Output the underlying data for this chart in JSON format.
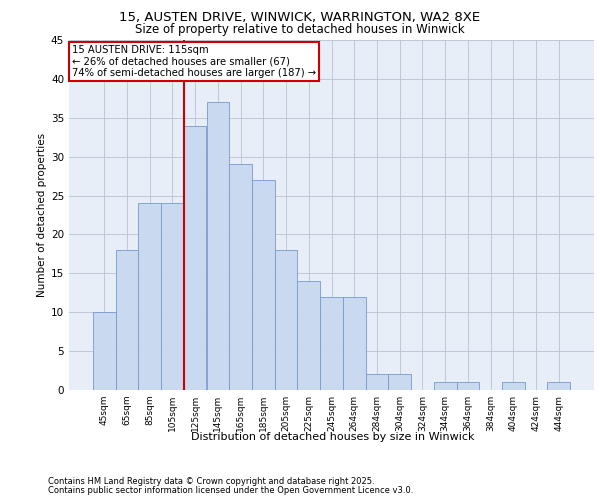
{
  "title1": "15, AUSTEN DRIVE, WINWICK, WARRINGTON, WA2 8XE",
  "title2": "Size of property relative to detached houses in Winwick",
  "xlabel": "Distribution of detached houses by size in Winwick",
  "ylabel": "Number of detached properties",
  "bar_labels": [
    "45sqm",
    "65sqm",
    "85sqm",
    "105sqm",
    "125sqm",
    "145sqm",
    "165sqm",
    "185sqm",
    "205sqm",
    "225sqm",
    "245sqm",
    "264sqm",
    "284sqm",
    "304sqm",
    "324sqm",
    "344sqm",
    "364sqm",
    "384sqm",
    "404sqm",
    "424sqm",
    "444sqm"
  ],
  "bar_values": [
    10,
    18,
    24,
    24,
    34,
    37,
    29,
    27,
    18,
    14,
    12,
    12,
    2,
    2,
    0,
    1,
    1,
    0,
    1,
    0,
    1
  ],
  "bar_color": "#c8d9f0",
  "bar_edge_color": "#7799cc",
  "grid_color": "#c0c8d8",
  "bg_color": "#e8eef8",
  "vline_x": 115,
  "vline_color": "#cc0000",
  "annotation_text": "15 AUSTEN DRIVE: 115sqm\n← 26% of detached houses are smaller (67)\n74% of semi-detached houses are larger (187) →",
  "annotation_box_color": "#ffffff",
  "annotation_box_edge": "#cc0000",
  "footnote1": "Contains HM Land Registry data © Crown copyright and database right 2025.",
  "footnote2": "Contains public sector information licensed under the Open Government Licence v3.0.",
  "ylim": [
    0,
    45
  ],
  "yticks": [
    0,
    5,
    10,
    15,
    20,
    25,
    30,
    35,
    40,
    45
  ]
}
